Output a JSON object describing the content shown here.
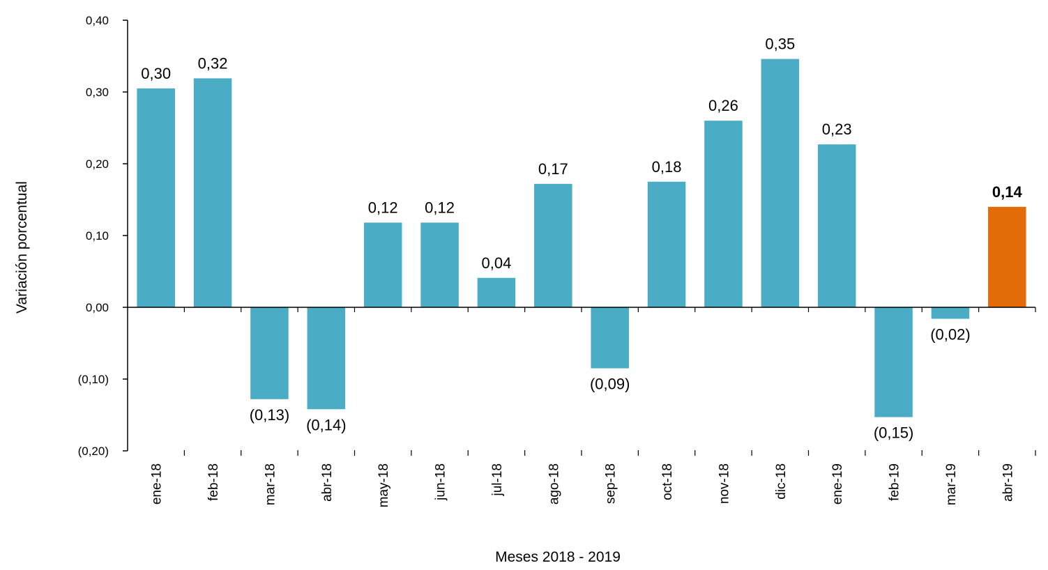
{
  "chart_data": {
    "type": "bar",
    "categories": [
      "ene-18",
      "feb-18",
      "mar-18",
      "abr-18",
      "may-18",
      "jun-18",
      "jul-18",
      "ago-18",
      "sep-18",
      "oct-18",
      "nov-18",
      "dic-18",
      "ene-19",
      "feb-19",
      "mar-19",
      "abr-19"
    ],
    "values": [
      0.305,
      0.319,
      -0.128,
      -0.142,
      0.118,
      0.118,
      0.041,
      0.172,
      -0.085,
      0.175,
      0.26,
      0.346,
      0.227,
      -0.153,
      -0.016,
      0.14
    ],
    "data_labels": [
      "0,30",
      "0,32",
      "(0,13)",
      "(0,14)",
      "0,12",
      "0,12",
      "0,04",
      "0,17",
      "(0,09)",
      "0,18",
      "0,26",
      "0,35",
      "0,23",
      "(0,15)",
      "(0,02)",
      "0,14"
    ],
    "highlight_index": 15,
    "colors": {
      "bar": "#4BACC6",
      "highlight": "#E36C09"
    },
    "xlabel": "Meses 2018 - 2019",
    "ylabel": "Variación porcentual",
    "ylim": [
      -0.2,
      0.4
    ],
    "yticks": [
      0.4,
      0.3,
      0.2,
      0.1,
      0.0,
      -0.1,
      -0.2
    ],
    "ytick_labels": [
      "0,40",
      "0,30",
      "0,20",
      "0,10",
      "0,00",
      "(0,10)",
      "(0,20)"
    ],
    "grid": false,
    "legend": "none"
  }
}
